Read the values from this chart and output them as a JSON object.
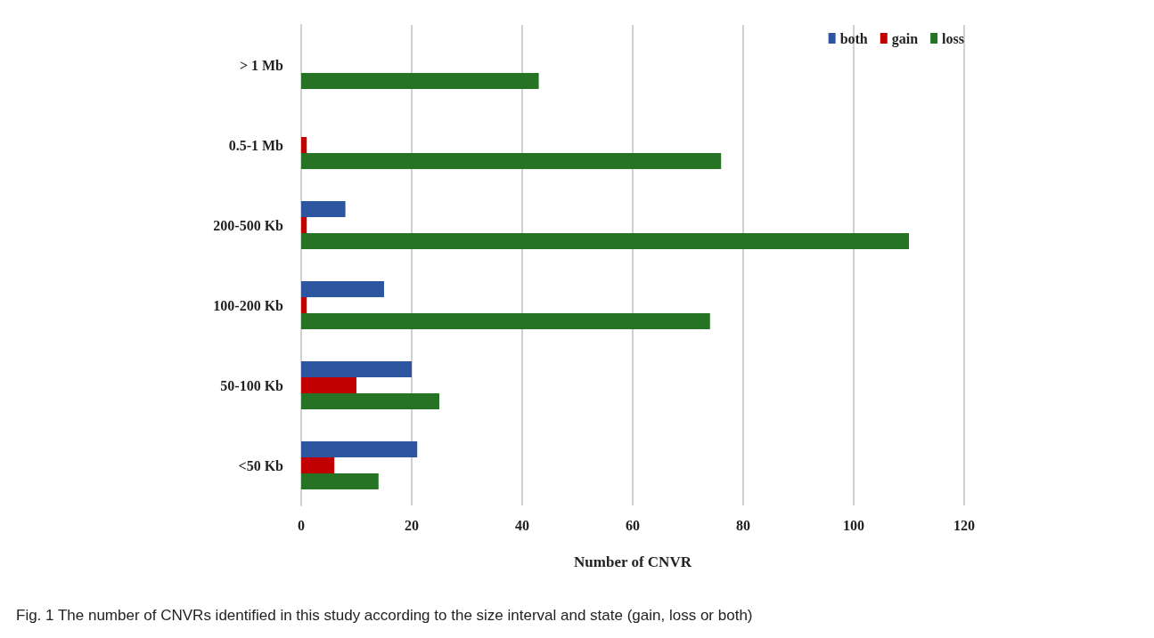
{
  "chart_data": {
    "type": "bar",
    "orientation": "horizontal",
    "xlabel": "Number of CNVR",
    "categories": [
      "> 1 Mb",
      "0.5-1 Mb",
      "200-500 Kb",
      "100-200 Kb",
      "50-100 Kb",
      "<50 Kb"
    ],
    "series": [
      {
        "name": "both",
        "color": "#2e55a0",
        "values": [
          0,
          0,
          8,
          15,
          20,
          21
        ]
      },
      {
        "name": "gain",
        "color": "#c00000",
        "values": [
          0,
          1,
          1,
          1,
          10,
          6
        ]
      },
      {
        "name": "loss",
        "color": "#277326",
        "values": [
          43,
          76,
          110,
          74,
          25,
          14
        ]
      }
    ],
    "xlim": [
      0,
      120
    ],
    "xticks": [
      0,
      20,
      40,
      60,
      80,
      100,
      120
    ],
    "grid": "x",
    "legend": "top right",
    "annotations": [
      "Fig. 1 The number of CNVRs identified in this study according to the size interval and state (gain, loss or both)"
    ]
  }
}
